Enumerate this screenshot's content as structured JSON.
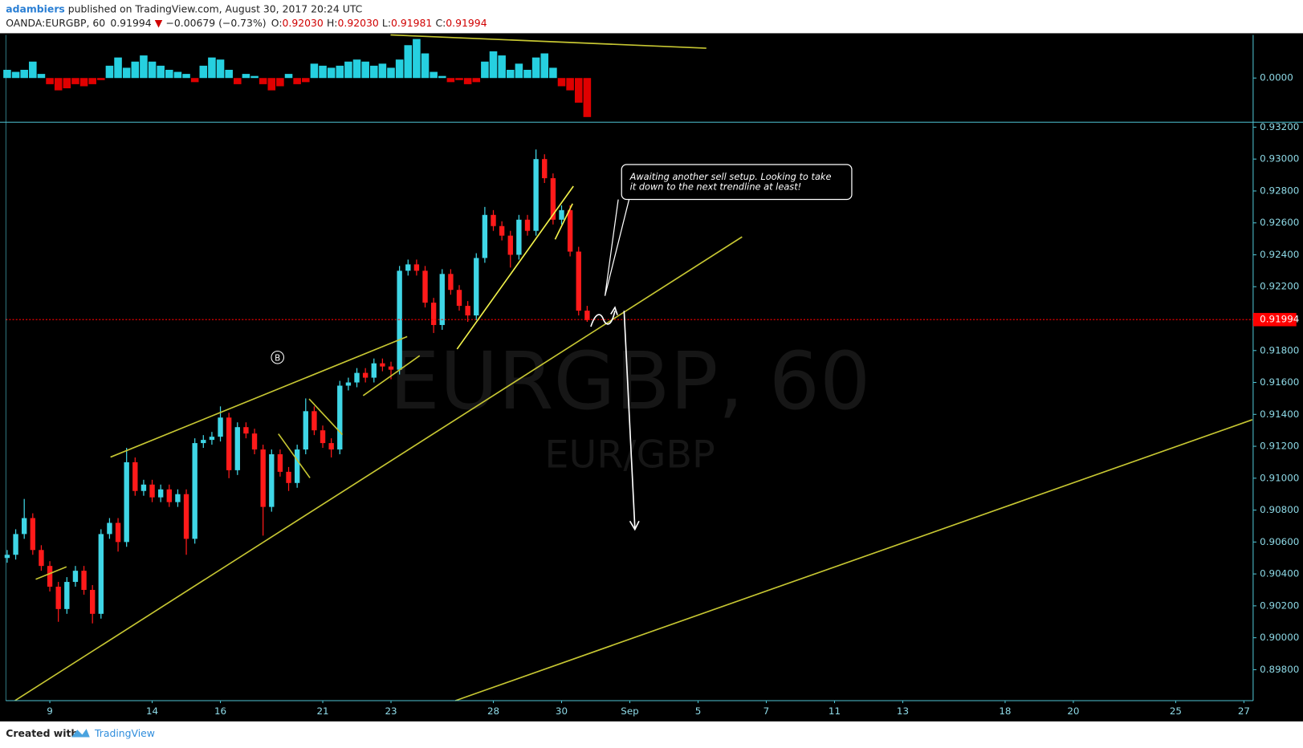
{
  "header": {
    "author": "adambiers",
    "published": " published on TradingView.com, August 30, 2017 20:24 UTC",
    "symbol": "OANDA:EURGBP, 60",
    "last": "0.91994",
    "direction": "▼",
    "change": "−0.00679 (−0.73%)",
    "ohlc": [
      {
        "label": "O:",
        "value": "0.92030"
      },
      {
        "label": "H:",
        "value": "0.92030"
      },
      {
        "label": "L:",
        "value": "0.91981"
      },
      {
        "label": "C:",
        "value": "0.91994"
      }
    ]
  },
  "footer": {
    "created": "Created with",
    "brand": "TradingView"
  },
  "chart_data": [
    {
      "type": "candlestick",
      "watermark": "EURGBP, 60",
      "watermark_sub": "EUR/GBP",
      "callout": [
        "Awaiting another sell setup. Looking to take",
        "it down to the next trendline at least!"
      ],
      "marker": "B",
      "up_color": "#3fd6e6",
      "down_color": "#ff1a1a",
      "x": [
        -1.25,
        -1,
        -0.75,
        -0.5,
        -0.25,
        0,
        0.25,
        0.5,
        0.75,
        1,
        1.25,
        1.5,
        1.75,
        2,
        2.25,
        2.5,
        2.75,
        3,
        3.25,
        3.5,
        3.75,
        4,
        4.25,
        4.5,
        4.75,
        5,
        5.25,
        5.5,
        5.75,
        6,
        6.25,
        6.5,
        6.75,
        7,
        7.25,
        7.5,
        7.75,
        8,
        8.25,
        8.5,
        8.75,
        9,
        9.25,
        9.5,
        9.75,
        10,
        10.25,
        10.5,
        10.75,
        11,
        11.25,
        11.5,
        11.75,
        12,
        12.25,
        12.5,
        12.75,
        13,
        13.25,
        13.5,
        13.75,
        14,
        14.25,
        14.5,
        14.75,
        15,
        15.25,
        15.5,
        15.75
      ],
      "open": [
        0.905,
        0.9052,
        0.9065,
        0.9075,
        0.9055,
        0.9045,
        0.9032,
        0.9018,
        0.9035,
        0.9042,
        0.903,
        0.9015,
        0.9065,
        0.9072,
        0.906,
        0.911,
        0.9092,
        0.9096,
        0.9088,
        0.9093,
        0.9085,
        0.909,
        0.9062,
        0.9122,
        0.9124,
        0.9126,
        0.9138,
        0.9105,
        0.9132,
        0.9128,
        0.9118,
        0.9082,
        0.9115,
        0.9104,
        0.9097,
        0.9118,
        0.9142,
        0.913,
        0.9122,
        0.9118,
        0.9158,
        0.916,
        0.9166,
        0.9163,
        0.9172,
        0.917,
        0.9168,
        0.923,
        0.9234,
        0.923,
        0.921,
        0.9196,
        0.9228,
        0.9218,
        0.9208,
        0.9202,
        0.9238,
        0.9265,
        0.9258,
        0.9252,
        0.924,
        0.9262,
        0.9255,
        0.93,
        0.9288,
        0.9262,
        0.9268,
        0.9242,
        0.9205
      ],
      "high": [
        0.9055,
        0.9068,
        0.9087,
        0.9078,
        0.9058,
        0.9048,
        0.9035,
        0.9038,
        0.9045,
        0.9045,
        0.9033,
        0.9068,
        0.9075,
        0.9075,
        0.9119,
        0.9113,
        0.9099,
        0.9099,
        0.9096,
        0.9096,
        0.9093,
        0.9093,
        0.9125,
        0.9127,
        0.9129,
        0.9145,
        0.9141,
        0.9135,
        0.9135,
        0.9131,
        0.9121,
        0.9118,
        0.9118,
        0.9107,
        0.9121,
        0.915,
        0.9145,
        0.9133,
        0.9125,
        0.9161,
        0.9163,
        0.9169,
        0.9169,
        0.9175,
        0.9175,
        0.9173,
        0.9233,
        0.9237,
        0.9237,
        0.9233,
        0.9213,
        0.9231,
        0.9231,
        0.9221,
        0.9211,
        0.9241,
        0.927,
        0.9268,
        0.9261,
        0.9255,
        0.9265,
        0.9265,
        0.9306,
        0.9303,
        0.9291,
        0.9271,
        0.9271,
        0.9245,
        0.9208
      ],
      "low": [
        0.9047,
        0.9049,
        0.9062,
        0.9052,
        0.9042,
        0.9029,
        0.901,
        0.9015,
        0.9032,
        0.9027,
        0.9009,
        0.9012,
        0.9062,
        0.9054,
        0.9057,
        0.9089,
        0.9089,
        0.9085,
        0.9085,
        0.9082,
        0.9082,
        0.9052,
        0.9059,
        0.9119,
        0.9121,
        0.9123,
        0.91,
        0.9102,
        0.9125,
        0.9115,
        0.9064,
        0.9079,
        0.9101,
        0.9092,
        0.9094,
        0.9115,
        0.9127,
        0.9119,
        0.9113,
        0.9115,
        0.9155,
        0.9157,
        0.916,
        0.916,
        0.9167,
        0.9162,
        0.9165,
        0.9227,
        0.9227,
        0.9207,
        0.9191,
        0.9193,
        0.9215,
        0.9205,
        0.9198,
        0.9199,
        0.9235,
        0.9255,
        0.9249,
        0.9232,
        0.9237,
        0.9252,
        0.9252,
        0.9285,
        0.9259,
        0.9259,
        0.9239,
        0.9202,
        0.9198
      ],
      "close": [
        0.9052,
        0.9065,
        0.9075,
        0.9055,
        0.9045,
        0.9032,
        0.9018,
        0.9035,
        0.9042,
        0.903,
        0.9015,
        0.9065,
        0.9072,
        0.906,
        0.911,
        0.9092,
        0.9096,
        0.9088,
        0.9093,
        0.9085,
        0.909,
        0.9062,
        0.9122,
        0.9124,
        0.9126,
        0.9138,
        0.9105,
        0.9132,
        0.9128,
        0.9118,
        0.9082,
        0.9115,
        0.9104,
        0.9097,
        0.9118,
        0.9142,
        0.913,
        0.9122,
        0.9118,
        0.9158,
        0.916,
        0.9166,
        0.9163,
        0.9172,
        0.917,
        0.9168,
        0.923,
        0.9234,
        0.923,
        0.921,
        0.9196,
        0.9228,
        0.9218,
        0.9208,
        0.9202,
        0.9238,
        0.9265,
        0.9258,
        0.9252,
        0.924,
        0.9262,
        0.9255,
        0.93,
        0.9288,
        0.9262,
        0.9268,
        0.9242,
        0.9205,
        0.9199
      ],
      "price_line": {
        "value": 0.91994,
        "label": "0.91994"
      },
      "price_line_color": "#ff0000",
      "xlim": [
        -1.29,
        35.27
      ],
      "ylim": [
        0.89606,
        0.93226
      ],
      "yticks": [
        {
          "value": 0.932,
          "label": "0.93200"
        },
        {
          "value": 0.93,
          "label": "0.93000"
        },
        {
          "value": 0.928,
          "label": "0.92800"
        },
        {
          "value": 0.926,
          "label": "0.92600"
        },
        {
          "value": 0.924,
          "label": "0.92400"
        },
        {
          "value": 0.922,
          "label": "0.92200"
        },
        {
          "value": 0.918,
          "label": "0.91800"
        },
        {
          "value": 0.916,
          "label": "0.91600"
        },
        {
          "value": 0.914,
          "label": "0.91400"
        },
        {
          "value": 0.912,
          "label": "0.91200"
        },
        {
          "value": 0.91,
          "label": "0.91000"
        },
        {
          "value": 0.908,
          "label": "0.90800"
        },
        {
          "value": 0.906,
          "label": "0.90600"
        },
        {
          "value": 0.904,
          "label": "0.90400"
        },
        {
          "value": 0.902,
          "label": "0.90200"
        },
        {
          "value": 0.9,
          "label": "0.90000"
        },
        {
          "value": 0.898,
          "label": "0.89800"
        }
      ],
      "xticks": [
        {
          "value": 0,
          "label": "9"
        },
        {
          "value": 3,
          "label": "14"
        },
        {
          "value": 5,
          "label": "16"
        },
        {
          "value": 8,
          "label": "21"
        },
        {
          "value": 10,
          "label": "23"
        },
        {
          "value": 13,
          "label": "28"
        },
        {
          "value": 15,
          "label": "30"
        },
        {
          "value": 17,
          "label": "Sep"
        },
        {
          "value": 19,
          "label": "5"
        },
        {
          "value": 21,
          "label": "7"
        },
        {
          "value": 23,
          "label": "11"
        },
        {
          "value": 25,
          "label": "13"
        },
        {
          "value": 28,
          "label": "18"
        },
        {
          "value": 30,
          "label": "20"
        },
        {
          "value": 33,
          "label": "25"
        },
        {
          "value": 35,
          "label": "27"
        }
      ]
    },
    {
      "type": "bar",
      "up_color": "#26d0e0",
      "down_color": "#e00000",
      "x": [
        -1.25,
        -1,
        -0.75,
        -0.5,
        -0.25,
        0,
        0.25,
        0.5,
        0.75,
        1,
        1.25,
        1.5,
        1.75,
        2,
        2.25,
        2.5,
        2.75,
        3,
        3.25,
        3.5,
        3.75,
        4,
        4.25,
        4.5,
        4.75,
        5,
        5.25,
        5.5,
        5.75,
        6,
        6.25,
        6.5,
        6.75,
        7,
        7.25,
        7.5,
        7.75,
        8,
        8.25,
        8.5,
        8.75,
        9,
        9.25,
        9.5,
        9.75,
        10,
        10.25,
        10.5,
        10.75,
        11,
        11.25,
        11.5,
        11.75,
        12,
        12.25,
        12.5,
        12.75,
        13,
        13.25,
        13.5,
        13.75,
        14,
        14.25,
        14.5,
        14.75,
        15,
        15.25,
        15.5,
        15.75
      ],
      "values": [
        0.0004,
        0.0003,
        0.0004,
        0.0008,
        0.0002,
        -0.0003,
        -0.0006,
        -0.0005,
        -0.0003,
        -0.0004,
        -0.0003,
        -0.0001,
        0.0006,
        0.001,
        0.0005,
        0.0008,
        0.0011,
        0.0008,
        0.0006,
        0.0004,
        0.0003,
        0.0002,
        -0.0002,
        0.0006,
        0.001,
        0.0009,
        0.0004,
        -0.0003,
        0.0002,
        0.0001,
        -0.0003,
        -0.0006,
        -0.0004,
        0.0002,
        -0.0003,
        -0.0002,
        0.0007,
        0.0006,
        0.0005,
        0.0006,
        0.0008,
        0.0009,
        0.0008,
        0.0006,
        0.0007,
        0.0005,
        0.0009,
        0.0016,
        0.0019,
        0.0012,
        0.0003,
        0.0001,
        -0.0002,
        -0.0001,
        -0.0003,
        -0.0002,
        0.0008,
        0.0013,
        0.0011,
        0.0004,
        0.0007,
        0.0004,
        0.001,
        0.0012,
        0.0005,
        -0.0004,
        -0.0006,
        -0.0012,
        -0.0019
      ],
      "xlim": [
        -1.29,
        35.27
      ],
      "ylim": [
        -0.00215,
        0.0021
      ],
      "yticks": [
        {
          "value": 0,
          "label": "0.0000"
        }
      ]
    }
  ]
}
